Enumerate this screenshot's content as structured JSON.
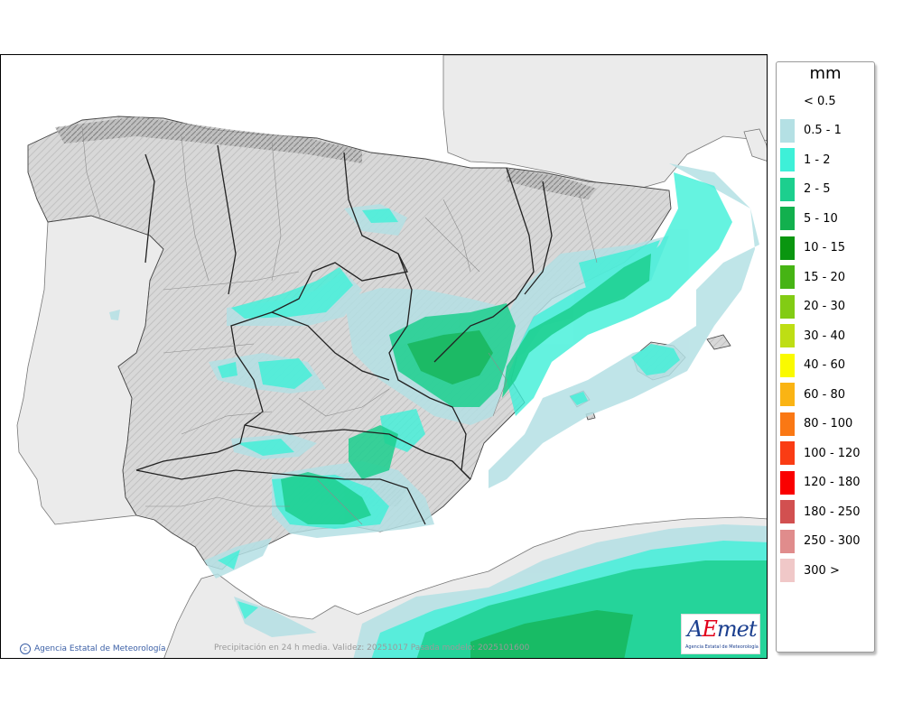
{
  "legend": {
    "unit": "mm",
    "items": [
      {
        "label": "< 0.5",
        "color": "#ffffff"
      },
      {
        "label": "0.5 - 1",
        "color": "#b4e0e4"
      },
      {
        "label": "1 - 2",
        "color": "#3ef0d8"
      },
      {
        "label": "2 - 5",
        "color": "#1ccf8e"
      },
      {
        "label": "5 - 10",
        "color": "#12b04e"
      },
      {
        "label": "10 - 15",
        "color": "#0a9610"
      },
      {
        "label": "15 - 20",
        "color": "#46b414"
      },
      {
        "label": "20 - 30",
        "color": "#82cc14"
      },
      {
        "label": "30 - 40",
        "color": "#bede14"
      },
      {
        "label": "40 - 60",
        "color": "#fafa00"
      },
      {
        "label": "60 - 80",
        "color": "#fab414"
      },
      {
        "label": "80 - 100",
        "color": "#fa7814"
      },
      {
        "label": "100 - 120",
        "color": "#fa3c14"
      },
      {
        "label": "120 - 180",
        "color": "#fa0000"
      },
      {
        "label": "180 - 250",
        "color": "#d25050"
      },
      {
        "label": "250 - 300",
        "color": "#e08c8c"
      },
      {
        "label": "300 >",
        "color": "#f0c8c8"
      }
    ]
  },
  "footer": {
    "credit": "Agencia Estatal de Meteorología",
    "caption": "Precipitación en 24 h media. Validez: 20251017 Pasada modelo: 2025101600"
  },
  "logo": {
    "text_a": "A",
    "text_e": "E",
    "text_met": "met",
    "subtitle": "Agencia Estatal de Meteorología"
  },
  "colors": {
    "sea": "#ffffff",
    "foreign_land": "#ebebeb",
    "spain_land": "#dcdcdc",
    "light_precip": "#b4e0e4",
    "cyan_precip": "#3ef0d8",
    "green_precip": "#1ccf8e",
    "dark_green_precip": "#12b04e",
    "regional_border": "#222222",
    "provincial_border": "#8c8c8c"
  }
}
